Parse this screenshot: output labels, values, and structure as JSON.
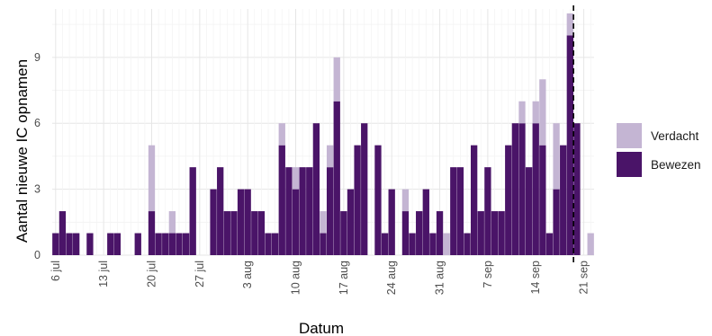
{
  "chart_data": {
    "type": "bar",
    "stacked": true,
    "xlabel": "Datum",
    "ylabel": "Aantal nieuwe IC opnamen",
    "ylim": [
      0,
      11.2
    ],
    "y_ticks": [
      0,
      3,
      6,
      9
    ],
    "x_tick_labels": [
      "6 jul",
      "13 jul",
      "20 jul",
      "27 jul",
      "3 aug",
      "10 aug",
      "17 aug",
      "24 aug",
      "31 aug",
      "7 sep",
      "14 sep",
      "21 sep"
    ],
    "grid": true,
    "legend_position": "right",
    "reference_line_label_index": 75,
    "categories": [
      "6 jul",
      "7 jul",
      "8 jul",
      "9 jul",
      "10 jul",
      "11 jul",
      "12 jul",
      "13 jul",
      "14 jul",
      "15 jul",
      "16 jul",
      "17 jul",
      "18 jul",
      "19 jul",
      "20 jul",
      "21 jul",
      "22 jul",
      "23 jul",
      "24 jul",
      "25 jul",
      "26 jul",
      "27 jul",
      "28 jul",
      "29 jul",
      "30 jul",
      "31 jul",
      "1 aug",
      "2 aug",
      "3 aug",
      "4 aug",
      "5 aug",
      "6 aug",
      "7 aug",
      "8 aug",
      "9 aug",
      "10 aug",
      "11 aug",
      "12 aug",
      "13 aug",
      "14 aug",
      "15 aug",
      "16 aug",
      "17 aug",
      "18 aug",
      "19 aug",
      "20 aug",
      "21 aug",
      "22 aug",
      "23 aug",
      "24 aug",
      "25 aug",
      "26 aug",
      "27 aug",
      "28 aug",
      "29 aug",
      "30 aug",
      "31 aug",
      "1 sep",
      "2 sep",
      "3 sep",
      "4 sep",
      "5 sep",
      "6 sep",
      "7 sep",
      "8 sep",
      "9 sep",
      "10 sep",
      "11 sep",
      "12 sep",
      "13 sep",
      "14 sep",
      "15 sep",
      "16 sep",
      "17 sep",
      "18 sep",
      "19 sep",
      "20 sep",
      "21 sep",
      "22 sep"
    ],
    "series": [
      {
        "name": "Bewezen",
        "color": "#4a1468",
        "values": [
          1,
          2,
          1,
          1,
          0,
          1,
          0,
          0,
          1,
          1,
          0,
          0,
          1,
          0,
          2,
          1,
          1,
          1,
          1,
          1,
          4,
          0,
          0,
          3,
          4,
          2,
          2,
          3,
          3,
          2,
          2,
          1,
          1,
          5,
          4,
          3,
          4,
          4,
          6,
          1,
          4,
          7,
          2,
          3,
          5,
          6,
          0,
          5,
          1,
          3,
          0,
          2,
          1,
          2,
          3,
          1,
          2,
          0,
          4,
          4,
          1,
          5,
          2,
          4,
          2,
          2,
          5,
          6,
          6,
          4,
          6,
          5,
          1,
          3,
          5,
          10,
          6,
          0,
          0
        ]
      },
      {
        "name": "Verdacht",
        "color": "#c4b5d3",
        "values": [
          0,
          0,
          0,
          0,
          0,
          0,
          0,
          0,
          0,
          0,
          0,
          0,
          0,
          0,
          3,
          0,
          0,
          1,
          0,
          0,
          0,
          0,
          0,
          0,
          0,
          0,
          0,
          0,
          0,
          0,
          0,
          0,
          0,
          1,
          0,
          1,
          0,
          0,
          0,
          1,
          1,
          2,
          0,
          0,
          0,
          0,
          0,
          0,
          0,
          0,
          0,
          1,
          0,
          0,
          0,
          0,
          0,
          1,
          0,
          0,
          0,
          0,
          0,
          0,
          0,
          0,
          0,
          0,
          1,
          0,
          1,
          3,
          0,
          3,
          0,
          1,
          0,
          0,
          1
        ]
      }
    ]
  }
}
